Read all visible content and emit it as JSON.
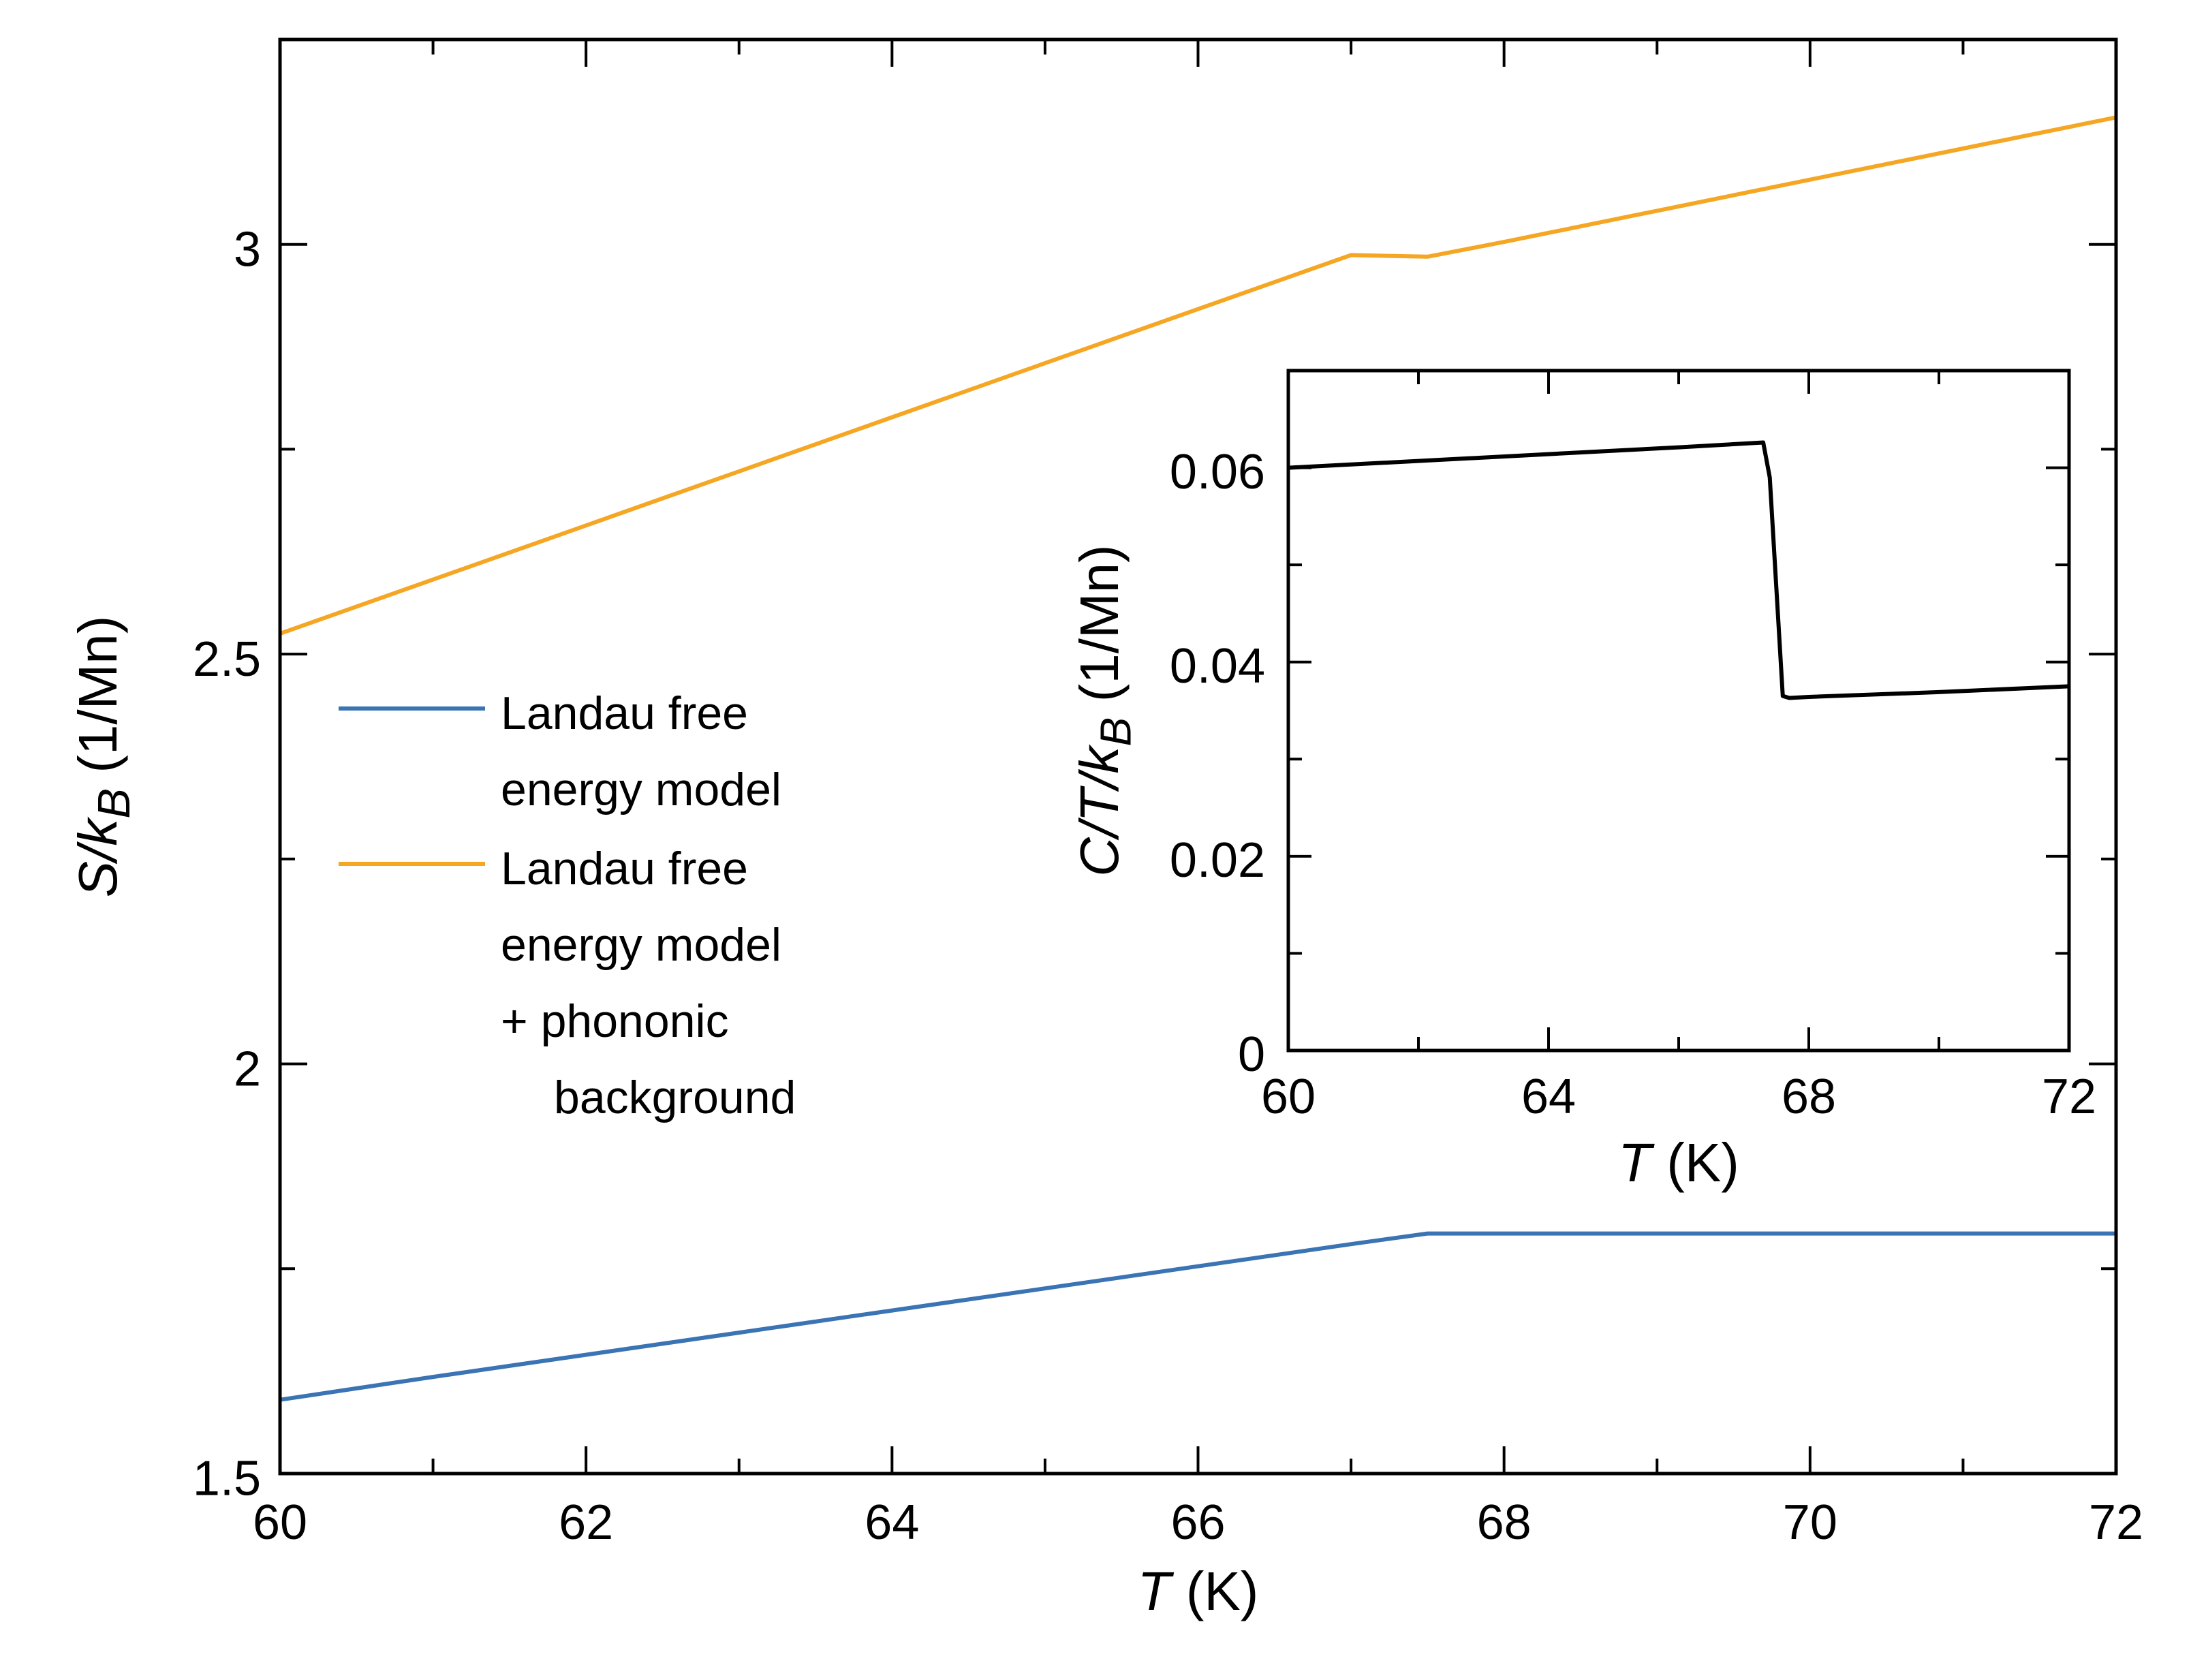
{
  "chart_data": [
    {
      "id": "main",
      "type": "line",
      "title": "",
      "xlabel": {
        "var": "T",
        "unit": " (K)"
      },
      "ylabel": {
        "var": "S/k",
        "sub": "B",
        "unit": " (1/Mn)"
      },
      "xlim": [
        60,
        72
      ],
      "ylim": [
        1.5,
        3.25
      ],
      "xticks": [
        60,
        62,
        64,
        66,
        68,
        70,
        72
      ],
      "xtick_labels": [
        "60",
        "62",
        "64",
        "66",
        "68",
        "70",
        "72"
      ],
      "xticks_minor": [
        61,
        63,
        65,
        67,
        69,
        71
      ],
      "yticks": [
        1.5,
        2,
        2.5,
        3
      ],
      "ytick_labels": [
        "1.5",
        "2",
        "2.5",
        "3"
      ],
      "yticks_minor": [
        1.75,
        2.25,
        2.75
      ],
      "grid": false,
      "legend_position": "left-middle",
      "series": [
        {
          "name": "Landau free energy model",
          "legend_lines": [
            "Landau free",
            "energy model"
          ],
          "color": "#3a74b4",
          "x": [
            60,
            61,
            62,
            63,
            64,
            65,
            66,
            67,
            67.5,
            68,
            69,
            70,
            71,
            72
          ],
          "y": [
            1.59,
            1.618,
            1.645,
            1.672,
            1.699,
            1.726,
            1.753,
            1.78,
            1.793,
            1.793,
            1.793,
            1.793,
            1.793,
            1.793
          ]
        },
        {
          "name": "Landau free energy model + phononic background",
          "legend_lines": [
            "Landau free",
            "energy model",
            "+ phononic",
            "background"
          ],
          "color": "#f5a623",
          "x": [
            60,
            61,
            62,
            63,
            64,
            65,
            66,
            67,
            67.5,
            68,
            69,
            70,
            71,
            72
          ],
          "y": [
            2.525,
            2.591,
            2.657,
            2.723,
            2.789,
            2.855,
            2.921,
            2.987,
            2.985,
            3.003,
            3.041,
            3.079,
            3.117,
            3.155
          ]
        }
      ]
    },
    {
      "id": "inset",
      "type": "line",
      "title": "",
      "xlabel": {
        "var": "T",
        "unit": " (K)"
      },
      "ylabel": {
        "var": "C/T/k",
        "sub": "B",
        "unit": " (1/Mn)"
      },
      "xlim": [
        60,
        72
      ],
      "ylim": [
        0,
        0.07
      ],
      "xticks": [
        60,
        64,
        68,
        72
      ],
      "xtick_labels": [
        "60",
        "64",
        "68",
        "72"
      ],
      "xticks_minor": [
        62,
        66,
        70
      ],
      "yticks": [
        0,
        0.02,
        0.04,
        0.06
      ],
      "ytick_labels": [
        "0",
        "0.02",
        "0.04",
        "0.06"
      ],
      "yticks_minor": [
        0.01,
        0.03,
        0.05
      ],
      "grid": false,
      "series": [
        {
          "name": "C/T/kB",
          "color": "#000000",
          "x": [
            60,
            62,
            64,
            66,
            67.3,
            67.4,
            67.6,
            67.7,
            68,
            70,
            72
          ],
          "y": [
            0.06,
            0.0607,
            0.0614,
            0.0621,
            0.0626,
            0.059,
            0.0365,
            0.0363,
            0.0364,
            0.0369,
            0.0375
          ]
        }
      ]
    }
  ]
}
